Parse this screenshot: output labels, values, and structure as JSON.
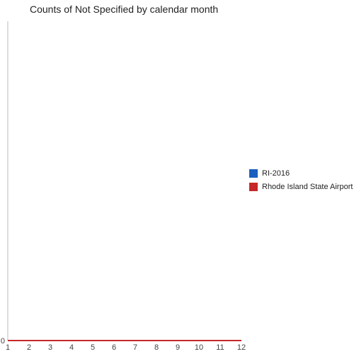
{
  "chart_data": {
    "type": "line",
    "title": "Counts of Not Specified by calendar month",
    "xlabel": "",
    "ylabel": "",
    "x": [
      1,
      2,
      3,
      4,
      5,
      6,
      7,
      8,
      9,
      10,
      11,
      12
    ],
    "xlim": [
      1,
      12
    ],
    "ylim": [
      0,
      1
    ],
    "yticks": [
      0
    ],
    "grid": false,
    "legend_position": "right",
    "series": [
      {
        "name": "RI-2016",
        "color": "#1c5fbf",
        "values": [
          0,
          0,
          0,
          0,
          0,
          0,
          0,
          0,
          0,
          0,
          0,
          0
        ]
      },
      {
        "name": "Rhode Island State Airport",
        "color": "#c62828",
        "values": [
          0,
          0,
          0,
          0,
          0,
          0,
          0,
          0,
          0,
          0,
          0,
          0
        ]
      }
    ]
  }
}
